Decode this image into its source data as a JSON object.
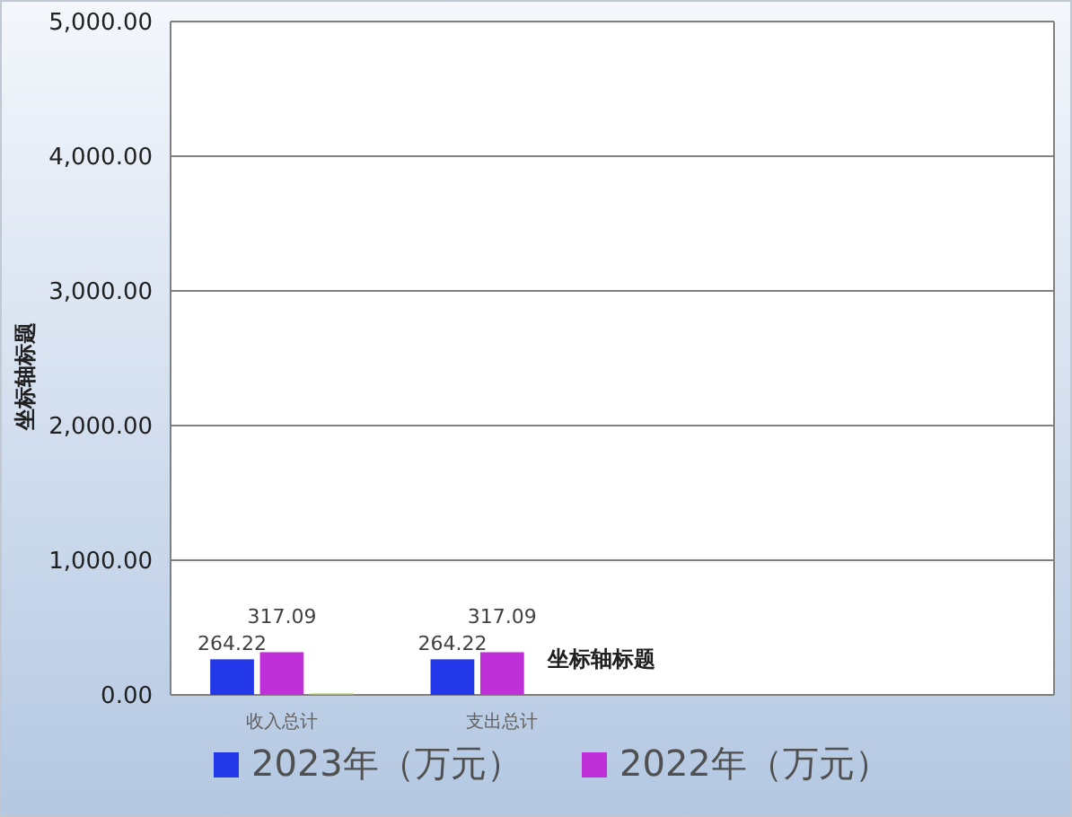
{
  "chart_data": {
    "type": "bar",
    "xlabel": "坐标轴标题",
    "ylabel": "坐标轴标题",
    "categories": [
      "收入总计",
      "支出总计",
      null,
      null
    ],
    "series": [
      {
        "name": "2023年（万元）",
        "color": "#2338e8",
        "values": [
          264.22,
          264.22,
          null,
          null
        ],
        "value_labels": [
          "264.22",
          "264.22",
          null,
          null
        ]
      },
      {
        "name": "2022年（万元）",
        "color": "#c030d8",
        "values": [
          317.09,
          317.09,
          null,
          null
        ],
        "value_labels": [
          "317.09",
          "317.09",
          null,
          null
        ]
      },
      {
        "color": "#9cc040",
        "values": [
          10,
          null,
          null,
          null
        ],
        "value_labels": [
          null,
          null,
          null,
          null
        ]
      }
    ],
    "ylim": [
      0,
      5000
    ],
    "yticks": [
      {
        "value": 0,
        "label": "0.00"
      },
      {
        "value": 1000,
        "label": "1,000.00"
      },
      {
        "value": 2000,
        "label": "2,000.00"
      },
      {
        "value": 3000,
        "label": "3,000.00"
      },
      {
        "value": 4000,
        "label": "4,000.00"
      },
      {
        "value": 5000,
        "label": "5,000.00"
      }
    ],
    "grid": "y",
    "legend": "bottom"
  }
}
